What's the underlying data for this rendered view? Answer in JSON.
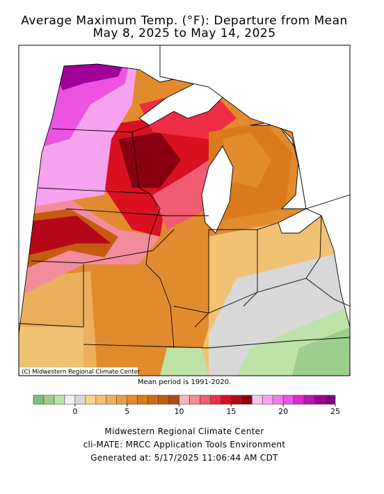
{
  "header": {
    "title": "Average Maximum Temp. (°F): Departure from Mean",
    "subtitle": "May 8, 2025 to May 14, 2025"
  },
  "map": {
    "credit": "(C) Midwestern Regional Climate Center",
    "note": "Mean period is 1991-2020."
  },
  "colorbar": {
    "bins": [
      -4,
      -3,
      -2,
      -1,
      0,
      1,
      2,
      3,
      4,
      5,
      6,
      7,
      8,
      9,
      10,
      11,
      12,
      13,
      14,
      15,
      16,
      17,
      18,
      19,
      20,
      21,
      22,
      23,
      24,
      25
    ],
    "colors": [
      "#7fbf7b",
      "#9ccf8e",
      "#bde3a8",
      "#f0f0f0",
      "#d8d8d8",
      "#f6d48e",
      "#f1c274",
      "#ecb05c",
      "#e79d44",
      "#e28b2e",
      "#db7a1c",
      "#d26a12",
      "#c55b10",
      "#b04a0e",
      "#f8b4bc",
      "#f38c9c",
      "#f05c72",
      "#ee2c44",
      "#d81022",
      "#b40818",
      "#880010",
      "#f8c4f0",
      "#f6a2ee",
      "#f07ce8",
      "#ec54e0",
      "#dc2ccf",
      "#c012b8",
      "#a00098",
      "#800078"
    ],
    "ticks": [
      0,
      5,
      10,
      15,
      20,
      25
    ]
  },
  "footer": {
    "lines": [
      "Midwestern Regional Climate Center",
      "cli-MATE: MRCC Application Tools Environment",
      "Generated at: 5/17/2025 11:06:44 AM CDT"
    ]
  }
}
